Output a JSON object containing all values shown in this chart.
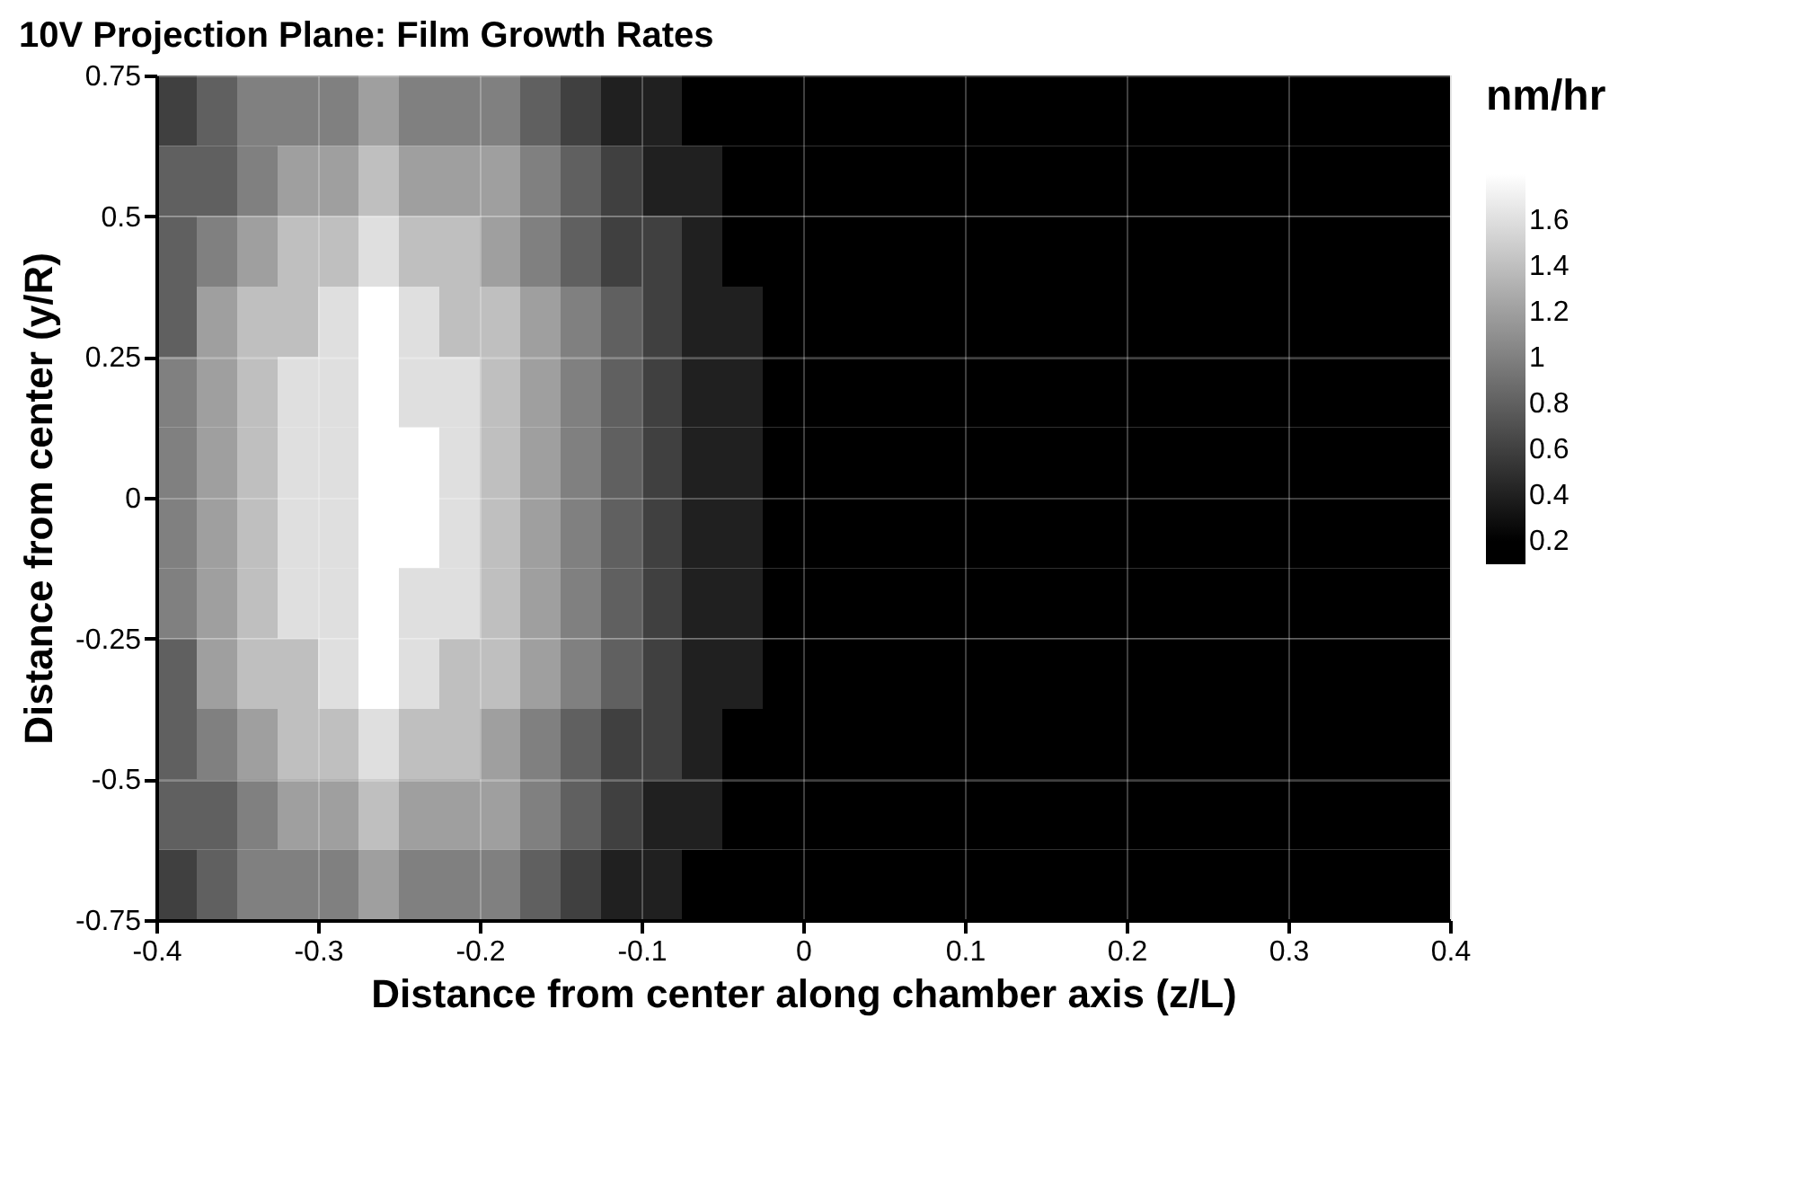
{
  "chart_data": {
    "type": "heatmap",
    "title": "10V Projection Plane: Film Growth Rates",
    "xlabel": "Distance from center along chamber axis (z/L)",
    "ylabel": "Distance from center (y/R)",
    "legend_title": "nm/hr",
    "cells": [
      [
        0.6,
        0.8,
        1.0,
        1.0,
        1.0,
        1.2,
        1.0,
        1.0,
        1.0,
        0.8,
        0.6,
        0.4,
        0.4,
        0.2,
        0.2,
        0.2,
        0.2,
        0.2,
        0.2,
        0.2,
        0.2,
        0.2,
        0.2,
        0.2,
        0.2,
        0.2,
        0.2,
        0.2,
        0.2,
        0.2,
        0.2,
        0.2
      ],
      [
        0.8,
        0.8,
        1.0,
        1.2,
        1.2,
        1.4,
        1.2,
        1.2,
        1.2,
        1.0,
        0.8,
        0.6,
        0.4,
        0.4,
        0.2,
        0.2,
        0.2,
        0.2,
        0.2,
        0.2,
        0.2,
        0.2,
        0.2,
        0.2,
        0.2,
        0.2,
        0.2,
        0.2,
        0.2,
        0.2,
        0.2,
        0.2
      ],
      [
        0.8,
        1.0,
        1.2,
        1.4,
        1.4,
        1.6,
        1.4,
        1.4,
        1.2,
        1.0,
        0.8,
        0.6,
        0.6,
        0.4,
        0.2,
        0.2,
        0.2,
        0.2,
        0.2,
        0.2,
        0.2,
        0.2,
        0.2,
        0.2,
        0.2,
        0.2,
        0.2,
        0.2,
        0.2,
        0.2,
        0.2,
        0.2
      ],
      [
        0.8,
        1.2,
        1.4,
        1.4,
        1.6,
        1.8,
        1.6,
        1.4,
        1.4,
        1.2,
        1.0,
        0.8,
        0.6,
        0.4,
        0.4,
        0.2,
        0.2,
        0.2,
        0.2,
        0.2,
        0.2,
        0.2,
        0.2,
        0.2,
        0.2,
        0.2,
        0.2,
        0.2,
        0.2,
        0.2,
        0.2,
        0.2
      ],
      [
        1.0,
        1.2,
        1.4,
        1.6,
        1.6,
        1.8,
        1.6,
        1.6,
        1.4,
        1.2,
        1.0,
        0.8,
        0.6,
        0.4,
        0.4,
        0.2,
        0.2,
        0.2,
        0.2,
        0.2,
        0.2,
        0.2,
        0.2,
        0.2,
        0.2,
        0.2,
        0.2,
        0.2,
        0.2,
        0.2,
        0.2,
        0.2
      ],
      [
        1.0,
        1.2,
        1.4,
        1.6,
        1.6,
        1.8,
        1.8,
        1.6,
        1.4,
        1.2,
        1.0,
        0.8,
        0.6,
        0.4,
        0.4,
        0.2,
        0.2,
        0.2,
        0.2,
        0.2,
        0.2,
        0.2,
        0.2,
        0.2,
        0.2,
        0.2,
        0.2,
        0.2,
        0.2,
        0.2,
        0.2,
        0.2
      ],
      [
        1.0,
        1.2,
        1.4,
        1.6,
        1.6,
        1.8,
        1.8,
        1.6,
        1.4,
        1.2,
        1.0,
        0.8,
        0.6,
        0.4,
        0.4,
        0.2,
        0.2,
        0.2,
        0.2,
        0.2,
        0.2,
        0.2,
        0.2,
        0.2,
        0.2,
        0.2,
        0.2,
        0.2,
        0.2,
        0.2,
        0.2,
        0.2
      ],
      [
        1.0,
        1.2,
        1.4,
        1.6,
        1.6,
        1.8,
        1.6,
        1.6,
        1.4,
        1.2,
        1.0,
        0.8,
        0.6,
        0.4,
        0.4,
        0.2,
        0.2,
        0.2,
        0.2,
        0.2,
        0.2,
        0.2,
        0.2,
        0.2,
        0.2,
        0.2,
        0.2,
        0.2,
        0.2,
        0.2,
        0.2,
        0.2
      ],
      [
        0.8,
        1.2,
        1.4,
        1.4,
        1.6,
        1.8,
        1.6,
        1.4,
        1.4,
        1.2,
        1.0,
        0.8,
        0.6,
        0.4,
        0.4,
        0.2,
        0.2,
        0.2,
        0.2,
        0.2,
        0.2,
        0.2,
        0.2,
        0.2,
        0.2,
        0.2,
        0.2,
        0.2,
        0.2,
        0.2,
        0.2,
        0.2
      ],
      [
        0.8,
        1.0,
        1.2,
        1.4,
        1.4,
        1.6,
        1.4,
        1.4,
        1.2,
        1.0,
        0.8,
        0.6,
        0.6,
        0.4,
        0.2,
        0.2,
        0.2,
        0.2,
        0.2,
        0.2,
        0.2,
        0.2,
        0.2,
        0.2,
        0.2,
        0.2,
        0.2,
        0.2,
        0.2,
        0.2,
        0.2,
        0.2
      ],
      [
        0.8,
        0.8,
        1.0,
        1.2,
        1.2,
        1.4,
        1.2,
        1.2,
        1.2,
        1.0,
        0.8,
        0.6,
        0.4,
        0.4,
        0.2,
        0.2,
        0.2,
        0.2,
        0.2,
        0.2,
        0.2,
        0.2,
        0.2,
        0.2,
        0.2,
        0.2,
        0.2,
        0.2,
        0.2,
        0.2,
        0.2,
        0.2
      ],
      [
        0.6,
        0.8,
        1.0,
        1.0,
        1.0,
        1.2,
        1.0,
        1.0,
        1.0,
        0.8,
        0.6,
        0.4,
        0.4,
        0.2,
        0.2,
        0.2,
        0.2,
        0.2,
        0.2,
        0.2,
        0.2,
        0.2,
        0.2,
        0.2,
        0.2,
        0.2,
        0.2,
        0.2,
        0.2,
        0.2,
        0.2,
        0.2
      ]
    ],
    "xlim": [
      -0.4,
      0.4
    ],
    "xticks": [
      -0.4,
      -0.3,
      -0.2,
      -0.1,
      0,
      0.1,
      0.2,
      0.3,
      0.4
    ],
    "ylim": [
      -0.75,
      0.75
    ],
    "yticks": [
      -0.75,
      -0.5,
      -0.25,
      0,
      0.25,
      0.5,
      0.75
    ],
    "clim": [
      0.1,
      1.9
    ],
    "cticks": [
      0.2,
      0.4,
      0.6,
      0.8,
      1,
      1.2,
      1.4,
      1.6
    ],
    "grid": true
  }
}
